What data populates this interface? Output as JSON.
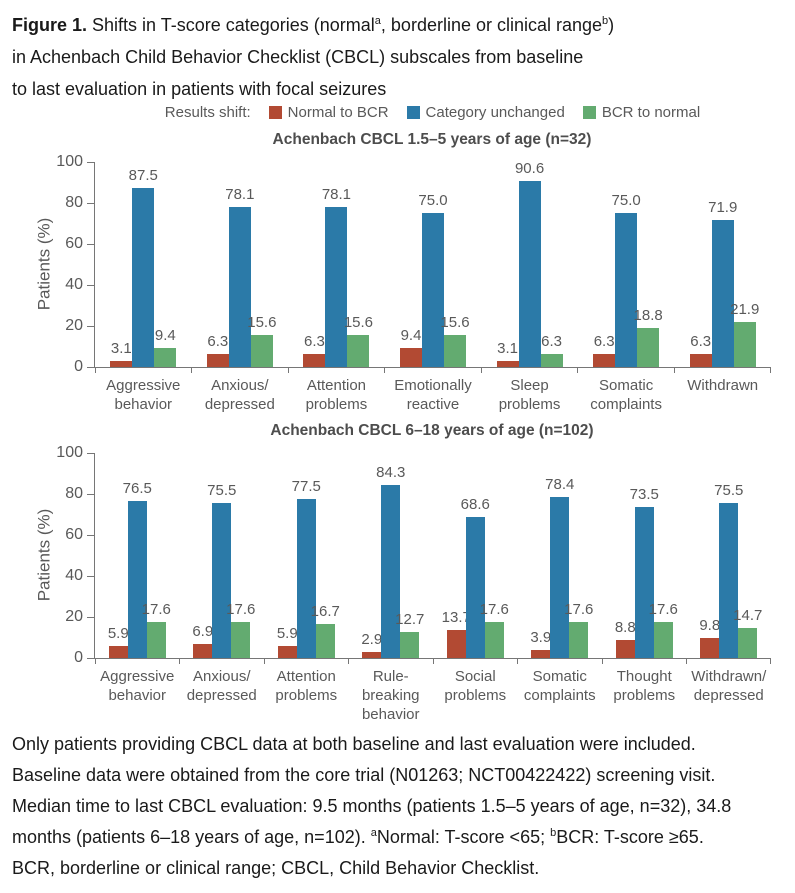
{
  "figure_title": {
    "label": "Figure 1.",
    "part1": " Shifts in T-score categories (normal",
    "sup_a": "a",
    "part2": ", borderline or clinical range",
    "sup_b": "b",
    "part3": ")",
    "line2": "in Achenbach Child Behavior Checklist (CBCL) subscales from baseline",
    "line3": "to last evaluation in patients with focal seizures"
  },
  "legend": {
    "prefix": "Results shift:",
    "position": "top",
    "items": [
      {
        "label": "Normal to BCR",
        "color": "#b24a33"
      },
      {
        "label": "Category unchanged",
        "color": "#2b7aa8"
      },
      {
        "label": "BCR to normal",
        "color": "#63ab70"
      }
    ]
  },
  "chart_data": [
    {
      "type": "bar",
      "title": "Achenbach CBCL 1.5–5 years of age (n=32)",
      "xlabel": "",
      "ylabel": "Patients (%)",
      "ylim": [
        0,
        100
      ],
      "yticks": [
        0,
        20,
        40,
        60,
        80,
        100
      ],
      "grid": false,
      "categories": [
        [
          "Aggressive",
          "behavior"
        ],
        [
          "Anxious/",
          "depressed"
        ],
        [
          "Attention",
          "problems"
        ],
        [
          "Emotionally",
          "reactive"
        ],
        [
          "Sleep",
          "problems"
        ],
        [
          "Somatic",
          "complaints"
        ],
        [
          "Withdrawn"
        ]
      ],
      "series": [
        {
          "name": "Normal to BCR",
          "color": "#b24a33",
          "values": [
            3.1,
            6.3,
            6.3,
            9.4,
            3.1,
            6.3,
            6.3
          ]
        },
        {
          "name": "Category unchanged",
          "color": "#2b7aa8",
          "values": [
            87.5,
            78.1,
            78.1,
            75.0,
            90.6,
            75.0,
            71.9
          ]
        },
        {
          "name": "BCR to normal",
          "color": "#63ab70",
          "values": [
            9.4,
            15.6,
            15.6,
            15.6,
            6.3,
            18.8,
            21.9
          ]
        }
      ]
    },
    {
      "type": "bar",
      "title": "Achenbach CBCL 6–18 years of age (n=102)",
      "xlabel": "",
      "ylabel": "Patients (%)",
      "ylim": [
        0,
        100
      ],
      "yticks": [
        0,
        20,
        40,
        60,
        80,
        100
      ],
      "grid": false,
      "categories": [
        [
          "Aggressive",
          "behavior"
        ],
        [
          "Anxious/",
          "depressed"
        ],
        [
          "Attention",
          "problems"
        ],
        [
          "Rule-breaking",
          "behavior"
        ],
        [
          "Social",
          "problems"
        ],
        [
          "Somatic",
          "complaints"
        ],
        [
          "Thought",
          "problems"
        ],
        [
          "Withdrawn/",
          "depressed"
        ]
      ],
      "series": [
        {
          "name": "Normal to BCR",
          "color": "#b24a33",
          "values": [
            5.9,
            6.9,
            5.9,
            2.9,
            13.7,
            3.9,
            8.8,
            9.8
          ]
        },
        {
          "name": "Category unchanged",
          "color": "#2b7aa8",
          "values": [
            76.5,
            75.5,
            77.5,
            84.3,
            68.6,
            78.4,
            73.5,
            75.5
          ]
        },
        {
          "name": "BCR to normal",
          "color": "#63ab70",
          "values": [
            17.6,
            17.6,
            16.7,
            12.7,
            17.6,
            17.6,
            17.6,
            14.7
          ]
        }
      ]
    }
  ],
  "footnote": {
    "line1": "Only patients providing CBCL data at both baseline and last evaluation were included.",
    "line2": "Baseline data were obtained from the core trial (N01263; NCT00422422) screening visit.",
    "line3": "Median time to last CBCL evaluation: 9.5 months (patients 1.5–5 years of age, n=32), 34.8",
    "line4_part1": "months (patients 6–18 years of age, n=102). ",
    "line4_sup_a": "a",
    "line4_part2": "Normal: T-score <65; ",
    "line4_sup_b": "b",
    "line4_part3": "BCR: T-score ≥65.",
    "line5": "BCR, borderline or clinical range; CBCL, Child Behavior Checklist."
  }
}
